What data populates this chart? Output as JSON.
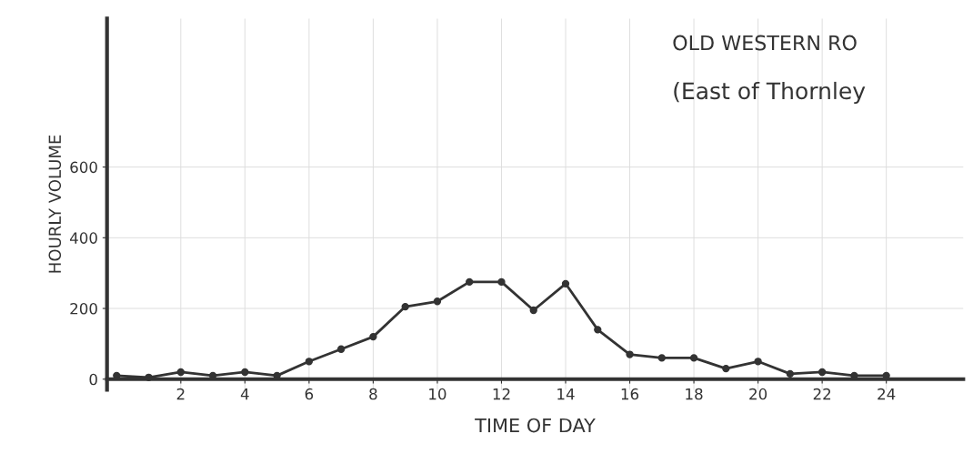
{
  "chart_data": {
    "type": "line",
    "title": "OLD WESTERN RO",
    "subtitle": "(East of Thornley",
    "xlabel": "TIME OF DAY",
    "ylabel": "HOURLY VOLUME",
    "x": [
      0,
      1,
      2,
      3,
      4,
      5,
      6,
      7,
      8,
      9,
      10,
      11,
      12,
      13,
      14,
      15,
      16,
      17,
      18,
      19,
      20,
      21,
      22,
      23,
      24
    ],
    "series": [
      {
        "color": "#333333",
        "values": [
          10,
          5,
          20,
          10,
          20,
          10,
          50,
          85,
          120,
          205,
          220,
          275,
          275,
          195,
          270,
          140,
          70,
          60,
          60,
          30,
          50,
          15,
          20,
          10,
          10
        ]
      }
    ],
    "xlim": [
      -0.3,
      26.4
    ],
    "xticks": [
      2,
      4,
      6,
      8,
      10,
      12,
      14,
      16,
      18,
      20,
      22,
      24
    ],
    "ylim": [
      -30,
      1020
    ],
    "yticks": [
      0,
      200,
      400,
      600
    ],
    "grid": true,
    "marker": "circle",
    "line_style": "solid",
    "legend": false
  }
}
